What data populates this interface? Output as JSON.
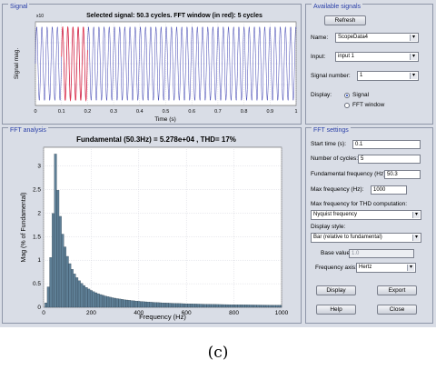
{
  "signal_panel": {
    "title": "Signal",
    "plot_title": "Selected signal: 50.3 cycles. FFT window (in red): 5 cycles",
    "ylabel": "Signal mag.",
    "xlabel": "Time (s)",
    "exponent": "x10",
    "xticks": [
      "0",
      "0.1",
      "0.2",
      "0.3",
      "0.4",
      "0.5",
      "0.6",
      "0.7",
      "0.8",
      "0.9",
      "1"
    ]
  },
  "available_signals": {
    "title": "Available signals",
    "refresh_label": "Refresh",
    "name_label": "Name:",
    "name_value": "ScopeData4",
    "input_label": "Input:",
    "input_value": "input 1",
    "signal_number_label": "Signal number:",
    "signal_number_value": "1",
    "display_label": "Display:",
    "option_signal": "Signal",
    "option_fft_window": "FFT window"
  },
  "fft_panel": {
    "title": "FFT analysis",
    "plot_title": "Fundamental (50.3Hz) = 5.278e+04 , THD= 17%"
  },
  "fft_settings": {
    "title": "FFT settings",
    "start_time_label": "Start time (s):",
    "start_time_value": "0.1",
    "cycles_label": "Number of cycles:",
    "cycles_value": "5",
    "fund_freq_label": "Fundamental frequency (Hz):",
    "fund_freq_value": "50.3",
    "max_freq_label": "Max frequency (Hz):",
    "max_freq_value": "1000",
    "thd_max_label": "Max frequency for THD computation:",
    "thd_max_value": "Nyquist frequency",
    "display_style_label": "Display style:",
    "display_style_value": "Bar (relative to fundamental)",
    "base_value_label": "Base value:",
    "base_value_value": "1.0",
    "frequency_axis_label": "Frequency axis:",
    "frequency_axis_value": "Hertz",
    "display_button": "Display",
    "export_button": "Export",
    "help_button": "Help",
    "close_button": "Close"
  },
  "caption": "(c)",
  "colors": {
    "bar": "#5e7f96",
    "signal": "#3a3fb0",
    "window": "#e0304a"
  },
  "chart_data": [
    {
      "type": "line",
      "title": "Selected signal: 50.3 cycles. FFT window (in red): 5 cycles",
      "xlabel": "Time (s)",
      "ylabel": "Signal mag.",
      "xlim": [
        0,
        1
      ],
      "cycles": 50.3,
      "frequency_hz": 50.3,
      "fft_window": [
        0.1,
        0.2
      ],
      "grid": true
    },
    {
      "type": "bar",
      "title": "Fundamental (50.3Hz) = 5.278e+04 , THD= 17%",
      "xlabel": "Frequency (Hz)",
      "ylabel": "Mag (% of Fundamental)",
      "xlim": [
        0,
        1000
      ],
      "ylim": [
        0,
        3.4
      ],
      "xticks": [
        0,
        200,
        400,
        600,
        800,
        1000
      ],
      "yticks": [
        0,
        0.5,
        1,
        1.5,
        2,
        2.5,
        3
      ],
      "peak_hz": 50.3,
      "peak_value": 3.3,
      "grid": true
    }
  ]
}
